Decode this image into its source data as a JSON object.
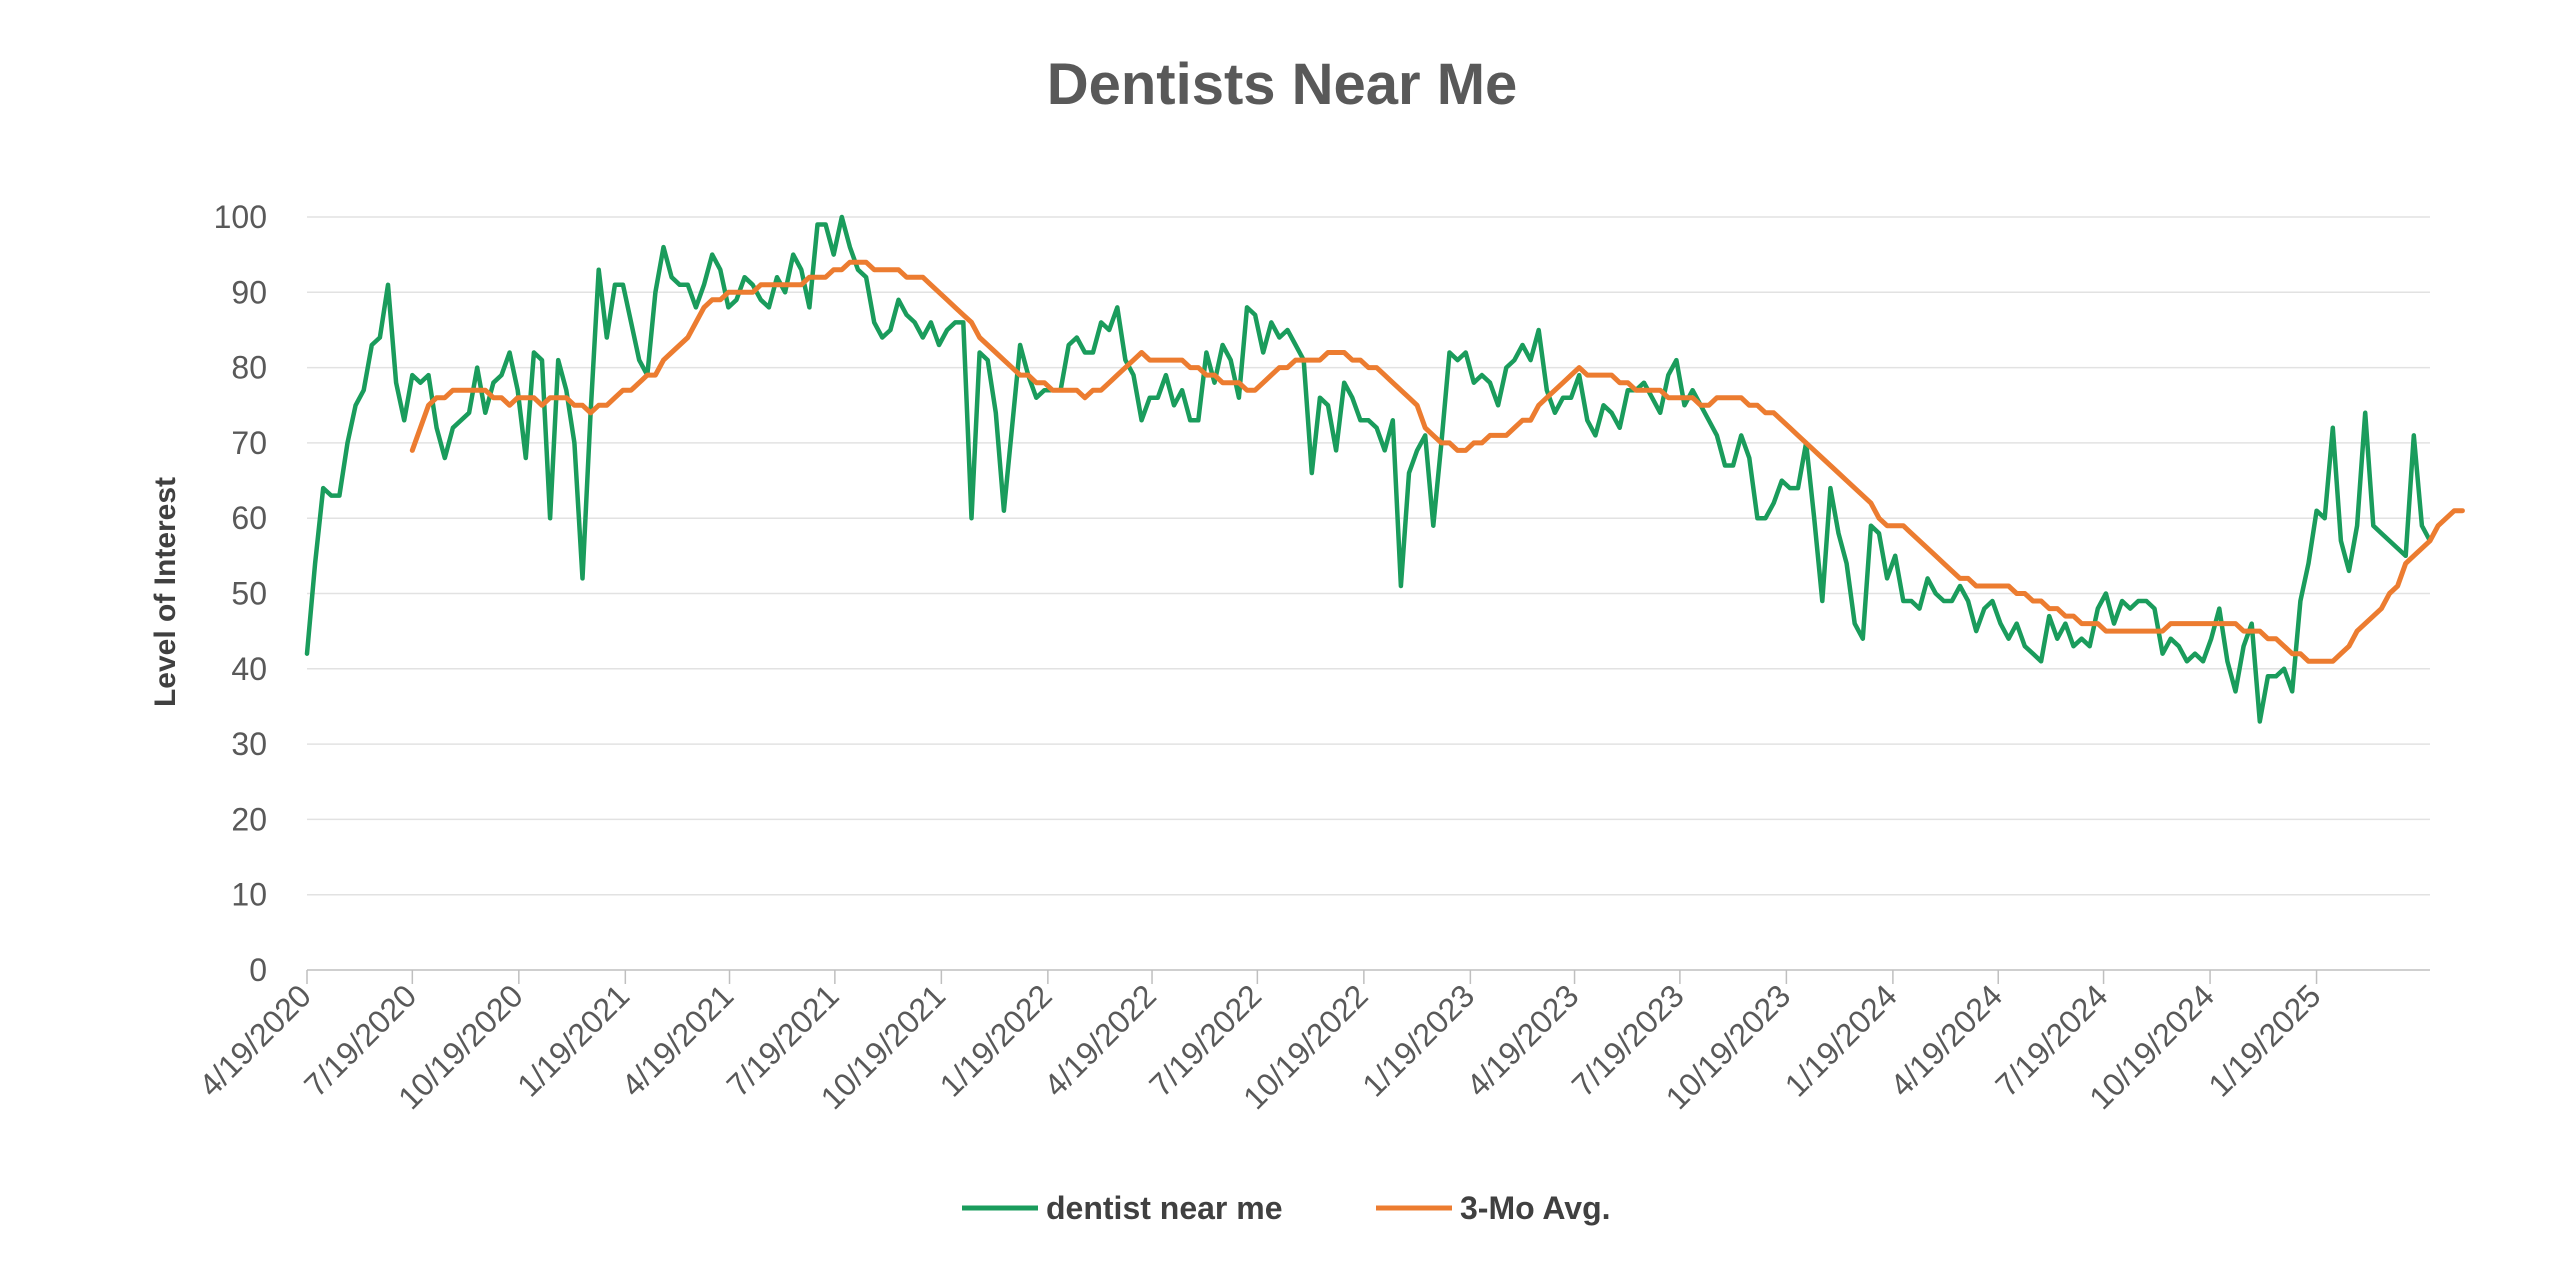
{
  "chart_data": {
    "type": "line",
    "title": "Dentists Near Me",
    "xlabel": "",
    "ylabel": "Level of Interest",
    "ylim": [
      0,
      100
    ],
    "y_ticks": [
      "0",
      "10",
      "20",
      "30",
      "40",
      "50",
      "60",
      "70",
      "80",
      "90",
      "100"
    ],
    "x_tick_labels": [
      "4/19/2020",
      "7/19/2020",
      "10/19/2020",
      "1/19/2021",
      "4/19/2021",
      "7/19/2021",
      "10/19/2021",
      "1/19/2022",
      "4/19/2022",
      "7/19/2022",
      "10/19/2022",
      "1/19/2023",
      "4/19/2023",
      "7/19/2023",
      "10/19/2023",
      "1/19/2024",
      "4/19/2024",
      "7/19/2024",
      "10/19/2024",
      "1/19/2025"
    ],
    "x_start": "4/19/2020",
    "x_interval": "weekly",
    "grid": true,
    "legend_position": "bottom",
    "series": [
      {
        "name": "dentist near me",
        "color": "#1a9c5c",
        "start_date": "4/19/2020",
        "values": [
          42,
          54,
          64,
          63,
          63,
          70,
          75,
          77,
          83,
          84,
          91,
          78,
          73,
          79,
          78,
          79,
          72,
          68,
          72,
          73,
          74,
          80,
          74,
          78,
          79,
          82,
          77,
          68,
          82,
          81,
          60,
          81,
          77,
          70,
          52,
          74,
          93,
          84,
          91,
          91,
          86,
          81,
          79,
          90,
          96,
          92,
          91,
          91,
          88,
          91,
          95,
          93,
          88,
          89,
          92,
          91,
          89,
          88,
          92,
          90,
          95,
          93,
          88,
          99,
          99,
          95,
          100,
          96,
          93,
          92,
          86,
          84,
          85,
          89,
          87,
          86,
          84,
          86,
          83,
          85,
          86,
          86,
          60,
          82,
          81,
          74,
          61,
          72,
          83,
          79,
          76,
          77,
          77,
          77,
          83,
          84,
          82,
          82,
          86,
          85,
          88,
          81,
          79,
          73,
          76,
          76,
          79,
          75,
          77,
          73,
          73,
          82,
          78,
          83,
          81,
          76,
          88,
          87,
          82,
          86,
          84,
          85,
          83,
          81,
          66,
          76,
          75,
          69,
          78,
          76,
          73,
          73,
          72,
          69,
          73,
          51,
          66,
          69,
          71,
          59,
          70,
          82,
          81,
          82,
          78,
          79,
          78,
          75,
          80,
          81,
          83,
          81,
          85,
          77,
          74,
          76,
          76,
          79,
          73,
          71,
          75,
          74,
          72,
          77,
          77,
          78,
          76,
          74,
          79,
          81,
          75,
          77,
          75,
          73,
          71,
          67,
          67,
          71,
          68,
          60,
          60,
          62,
          65,
          64,
          64,
          70,
          60,
          49,
          64,
          58,
          54,
          46,
          44,
          59,
          58,
          52,
          55,
          49,
          49,
          48,
          52,
          50,
          49,
          49,
          51,
          49,
          45,
          48,
          49,
          46,
          44,
          46,
          43,
          42,
          41,
          47,
          44,
          46,
          43,
          44,
          43,
          48,
          50,
          46,
          49,
          48,
          49,
          49,
          48,
          42,
          44,
          43,
          41,
          42,
          41,
          44,
          48,
          41,
          37,
          43,
          46,
          33,
          39,
          39,
          40,
          37,
          49,
          54,
          61,
          60,
          72,
          57,
          53,
          59,
          74,
          59,
          58,
          57,
          56,
          55,
          71,
          59,
          57
        ]
      },
      {
        "name": "3-Mo Avg.",
        "color": "#ec7c30",
        "start_date": "7/19/2020",
        "values": [
          69,
          72,
          75,
          76,
          76,
          77,
          77,
          77,
          77,
          77,
          76,
          76,
          75,
          76,
          76,
          76,
          75,
          76,
          76,
          76,
          75,
          75,
          74,
          75,
          75,
          76,
          77,
          77,
          78,
          79,
          79,
          81,
          82,
          83,
          84,
          86,
          88,
          89,
          89,
          90,
          90,
          90,
          90,
          91,
          91,
          91,
          91,
          91,
          91,
          92,
          92,
          92,
          93,
          93,
          94,
          94,
          94,
          93,
          93,
          93,
          93,
          92,
          92,
          92,
          91,
          90,
          89,
          88,
          87,
          86,
          84,
          83,
          82,
          81,
          80,
          79,
          79,
          78,
          78,
          77,
          77,
          77,
          77,
          76,
          77,
          77,
          78,
          79,
          80,
          81,
          82,
          81,
          81,
          81,
          81,
          81,
          80,
          80,
          79,
          79,
          78,
          78,
          78,
          77,
          77,
          78,
          79,
          80,
          80,
          81,
          81,
          81,
          81,
          82,
          82,
          82,
          81,
          81,
          80,
          80,
          79,
          78,
          77,
          76,
          75,
          72,
          71,
          70,
          70,
          69,
          69,
          70,
          70,
          71,
          71,
          71,
          72,
          73,
          73,
          75,
          76,
          77,
          78,
          79,
          80,
          79,
          79,
          79,
          79,
          78,
          78,
          77,
          77,
          77,
          77,
          76,
          76,
          76,
          76,
          75,
          75,
          76,
          76,
          76,
          76,
          75,
          75,
          74,
          74,
          73,
          72,
          71,
          70,
          69,
          68,
          67,
          66,
          65,
          64,
          63,
          62,
          60,
          59,
          59,
          59,
          58,
          57,
          56,
          55,
          54,
          53,
          52,
          52,
          51,
          51,
          51,
          51,
          51,
          50,
          50,
          49,
          49,
          48,
          48,
          47,
          47,
          46,
          46,
          46,
          45,
          45,
          45,
          45,
          45,
          45,
          45,
          45,
          46,
          46,
          46,
          46,
          46,
          46,
          46,
          46,
          46,
          45,
          45,
          45,
          44,
          44,
          43,
          42,
          42,
          41,
          41,
          41,
          41,
          42,
          43,
          45,
          46,
          47,
          48,
          50,
          51,
          54,
          55,
          56,
          57,
          59,
          60,
          61,
          61
        ]
      }
    ]
  }
}
